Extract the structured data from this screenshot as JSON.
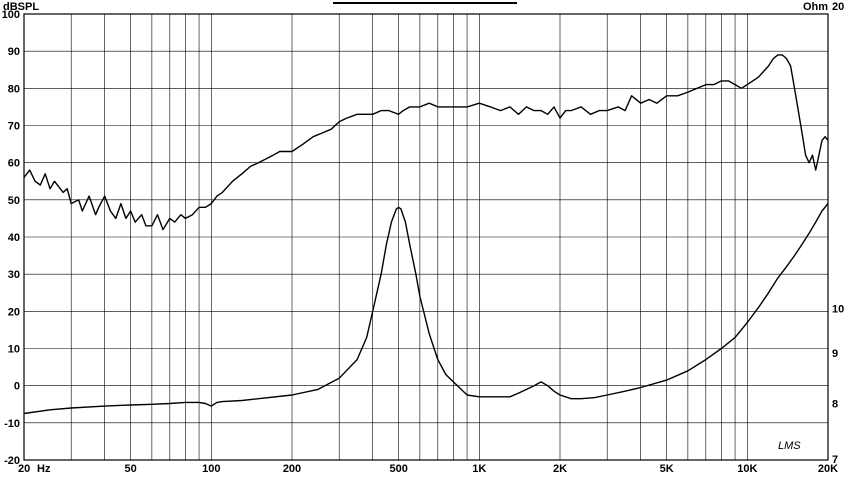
{
  "chart_data": {
    "type": "line",
    "title": "",
    "left_axis_unit": "dBSPL",
    "right_axis_unit": "Ohm",
    "watermark": "LMS",
    "x_scale": "log",
    "xlim": [
      20,
      20000
    ],
    "ylim_left": [
      -20,
      100
    ],
    "right_axis_range": [
      7,
      20
    ],
    "grid": true,
    "x_ticks": [
      {
        "value": 20,
        "label": "20"
      },
      {
        "value": 50,
        "label": "50"
      },
      {
        "value": 100,
        "label": "100"
      },
      {
        "value": 200,
        "label": "200"
      },
      {
        "value": 500,
        "label": "500"
      },
      {
        "value": 1000,
        "label": "1K"
      },
      {
        "value": 2000,
        "label": "2K"
      },
      {
        "value": 5000,
        "label": "5K"
      },
      {
        "value": 10000,
        "label": "10K"
      },
      {
        "value": 20000,
        "label": "20K"
      }
    ],
    "x_unit": "Hz",
    "y_left_ticks": [
      -20,
      -10,
      0,
      10,
      20,
      30,
      40,
      50,
      60,
      70,
      80,
      90,
      100
    ],
    "y_right_ticks": [
      {
        "value": 20,
        "label": "20"
      },
      {
        "value": 10,
        "label": "10"
      },
      {
        "value": 9,
        "label": "9"
      },
      {
        "value": 8,
        "label": "8"
      },
      {
        "value": 7,
        "label": "7"
      }
    ],
    "series": [
      {
        "axis": "left",
        "x": [
          20,
          21,
          22,
          23,
          24,
          25,
          26,
          28,
          29,
          30,
          32,
          33,
          35,
          37,
          38,
          40,
          42,
          44,
          46,
          48,
          50,
          52,
          55,
          57,
          60,
          63,
          66,
          70,
          73,
          77,
          80,
          85,
          90,
          95,
          100,
          105,
          110,
          120,
          130,
          140,
          150,
          160,
          170,
          180,
          200,
          220,
          240,
          260,
          280,
          300,
          320,
          350,
          380,
          400,
          430,
          460,
          500,
          520,
          550,
          600,
          650,
          700,
          750,
          800,
          850,
          900,
          1000,
          1100,
          1200,
          1300,
          1400,
          1500,
          1600,
          1700,
          1800,
          1900,
          2000,
          2100,
          2200,
          2400,
          2600,
          2800,
          3000,
          3300,
          3500,
          3700,
          4000,
          4300,
          4600,
          5000,
          5500,
          6000,
          6500,
          7000,
          7500,
          8000,
          8500,
          9000,
          9500,
          10000,
          11000,
          12000,
          12500,
          13000,
          13500,
          14000,
          14500,
          15000,
          15500,
          16000,
          16500,
          17000,
          17500,
          18000,
          18500,
          19000,
          19500,
          20000
        ],
        "values": [
          56,
          58,
          55,
          54,
          57,
          53,
          55,
          52,
          53,
          49,
          50,
          47,
          51,
          46,
          48,
          51,
          47,
          45,
          49,
          45,
          47,
          44,
          46,
          43,
          43,
          46,
          42,
          45,
          44,
          46,
          45,
          46,
          48,
          48,
          49,
          51,
          52,
          55,
          57,
          59,
          60,
          61,
          62,
          63,
          63,
          65,
          67,
          68,
          69,
          71,
          72,
          73,
          73,
          73,
          74,
          74,
          73,
          74,
          75,
          75,
          76,
          75,
          75,
          75,
          75,
          75,
          76,
          75,
          74,
          75,
          73,
          75,
          74,
          74,
          73,
          75,
          72,
          74,
          74,
          75,
          73,
          74,
          74,
          75,
          74,
          78,
          76,
          77,
          76,
          78,
          78,
          79,
          80,
          81,
          81,
          82,
          82,
          81,
          80,
          81,
          83,
          86,
          88,
          89,
          89,
          88,
          86,
          80,
          74,
          68,
          62,
          60,
          62,
          58,
          62,
          66,
          67,
          66
        ]
      },
      {
        "axis": "left",
        "x": [
          20,
          25,
          30,
          40,
          50,
          60,
          70,
          80,
          90,
          95,
          100,
          105,
          110,
          130,
          150,
          200,
          250,
          300,
          350,
          380,
          400,
          430,
          450,
          470,
          490,
          500,
          510,
          530,
          550,
          580,
          600,
          650,
          700,
          750,
          800,
          900,
          1000,
          1100,
          1200,
          1300,
          1400,
          1500,
          1600,
          1700,
          1800,
          1900,
          2000,
          2200,
          2400,
          2700,
          3000,
          3500,
          4000,
          5000,
          6000,
          7000,
          8000,
          9000,
          10000,
          11000,
          12000,
          13000,
          14000,
          15000,
          16000,
          17000,
          18000,
          19000,
          20000
        ],
        "values": [
          -7.5,
          -6.5,
          -6,
          -5.5,
          -5.2,
          -5,
          -4.8,
          -4.5,
          -4.5,
          -4.8,
          -5.5,
          -4.5,
          -4.3,
          -4,
          -3.5,
          -2.5,
          -1,
          2,
          7,
          13,
          20,
          30,
          38,
          44,
          47.5,
          48,
          47.5,
          44,
          38,
          30,
          24,
          14,
          7,
          3,
          1,
          -2.5,
          -3,
          -3,
          -3,
          -3,
          -2,
          -1,
          0,
          1,
          0,
          -1.5,
          -2.5,
          -3.5,
          -3.5,
          -3.2,
          -2.5,
          -1.5,
          -0.5,
          1.5,
          4,
          7,
          10,
          13,
          17,
          21,
          25,
          29,
          32,
          35,
          38,
          41,
          44,
          47,
          49
        ]
      }
    ]
  }
}
